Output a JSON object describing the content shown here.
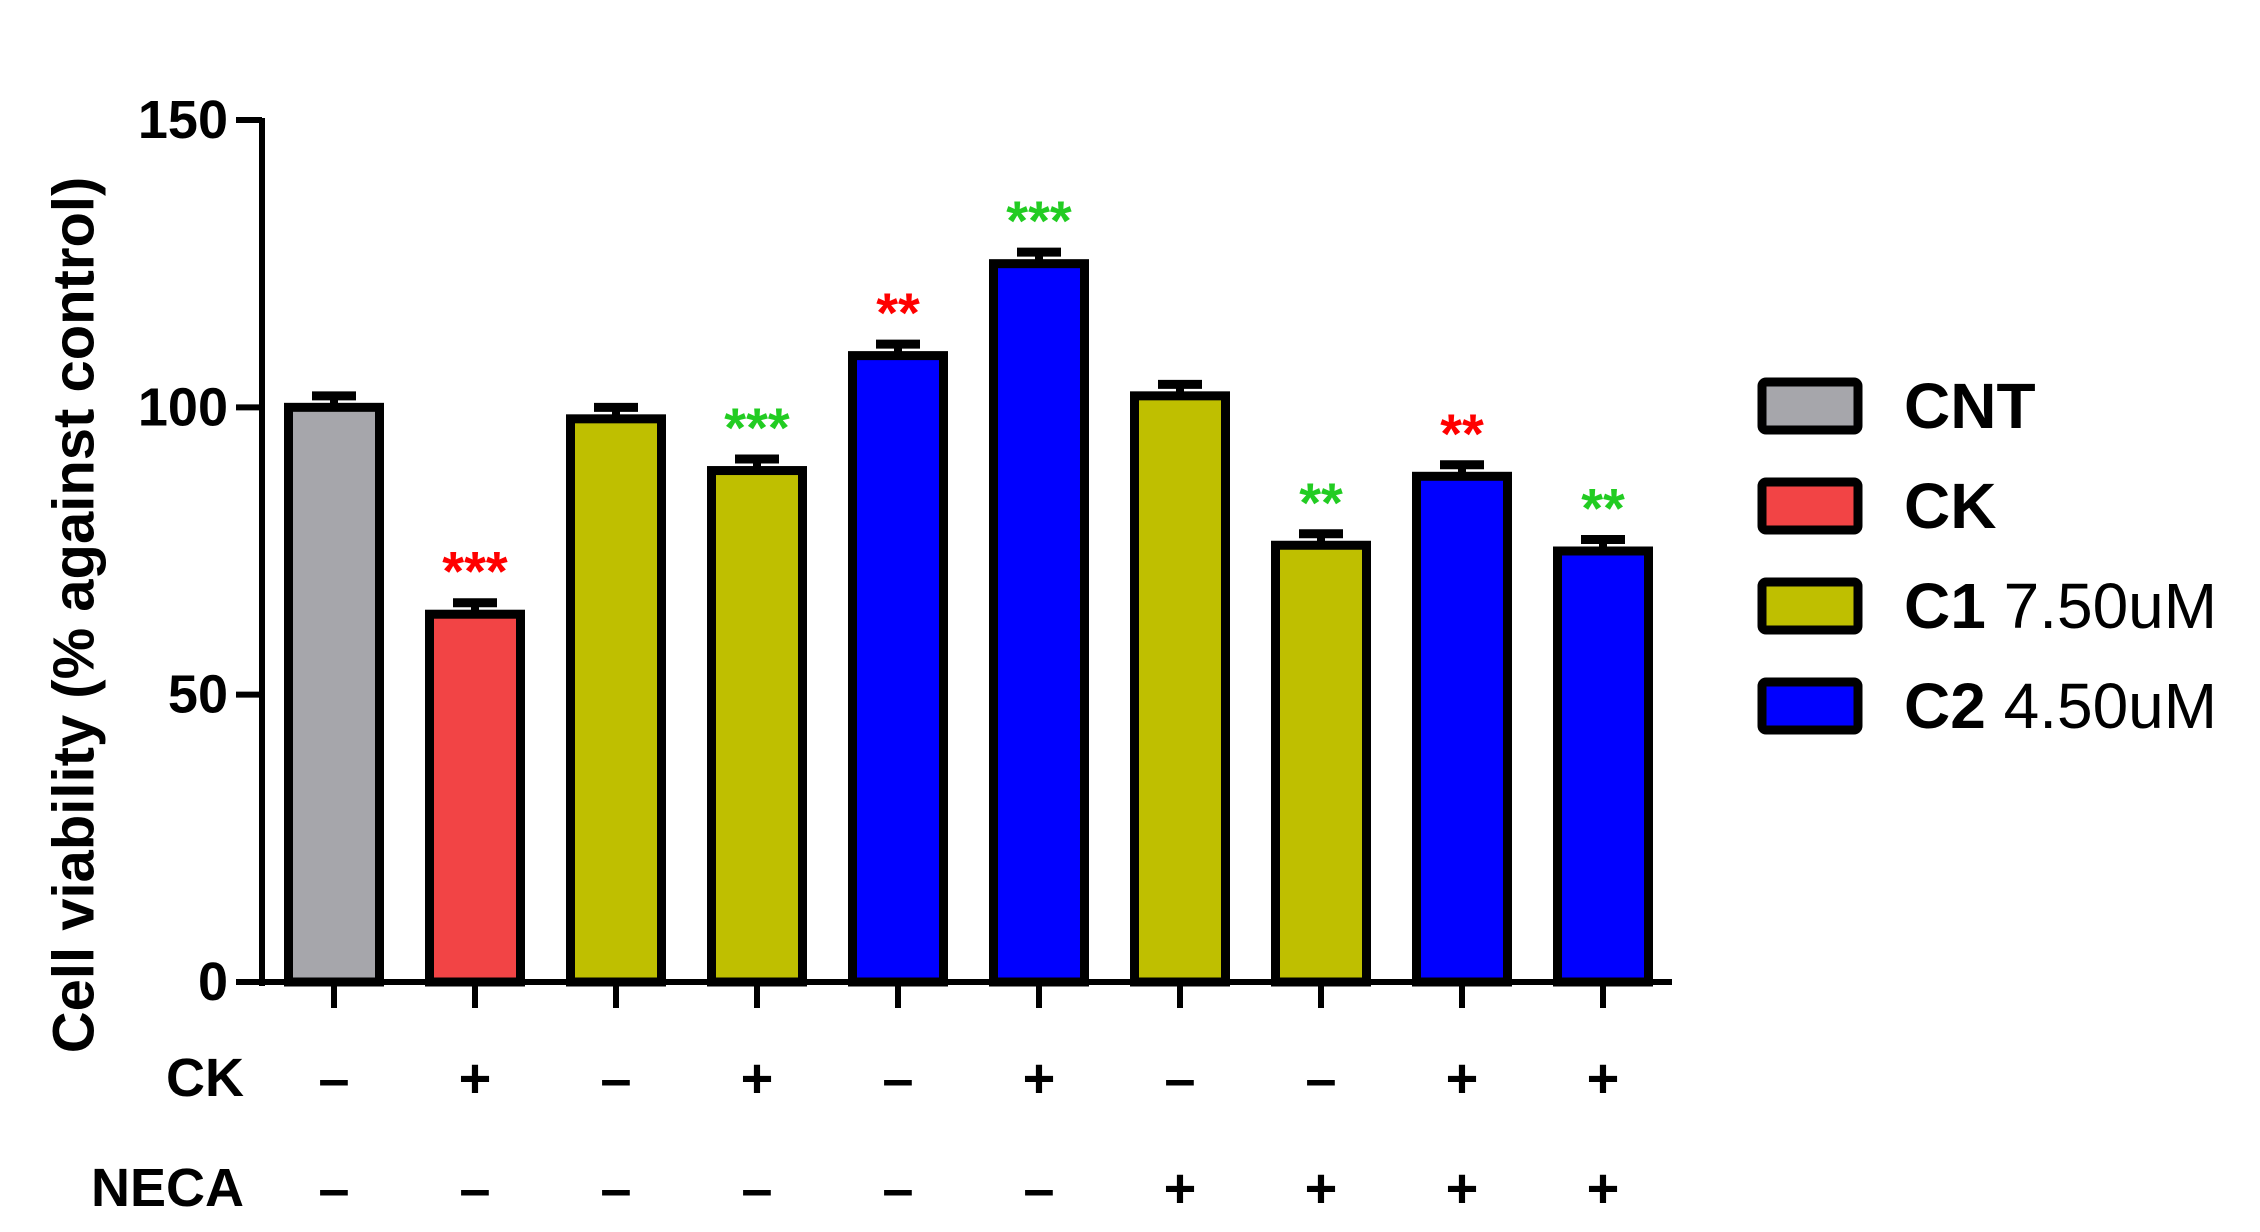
{
  "chart_data": {
    "type": "bar",
    "ylabel": "Cell viability (% against control)",
    "ylim": [
      0,
      150
    ],
    "yticks": [
      0,
      50,
      100,
      150
    ],
    "grid": false,
    "legend_position": "right",
    "bars": [
      {
        "group": "CNT",
        "value": 100,
        "error": 2,
        "sig": "",
        "sig_color": "red"
      },
      {
        "group": "CK",
        "value": 64,
        "error": 2,
        "sig": "***",
        "sig_color": "red"
      },
      {
        "group": "C1",
        "value": 98,
        "error": 2,
        "sig": "",
        "sig_color": "red"
      },
      {
        "group": "C1",
        "value": 89,
        "error": 2,
        "sig": "***",
        "sig_color": "green"
      },
      {
        "group": "C2",
        "value": 109,
        "error": 2,
        "sig": "**",
        "sig_color": "red"
      },
      {
        "group": "C2",
        "value": 125,
        "error": 2,
        "sig": "***",
        "sig_color": "green"
      },
      {
        "group": "C1",
        "value": 102,
        "error": 2,
        "sig": "",
        "sig_color": "red"
      },
      {
        "group": "C1",
        "value": 76,
        "error": 2,
        "sig": "**",
        "sig_color": "green"
      },
      {
        "group": "C2",
        "value": 88,
        "error": 2,
        "sig": "**",
        "sig_color": "red"
      },
      {
        "group": "C2",
        "value": 75,
        "error": 2,
        "sig": "**",
        "sig_color": "green"
      }
    ],
    "treatment_rows": [
      {
        "label": "CK",
        "values": [
          "–",
          "+",
          "–",
          "+",
          "–",
          "+",
          "–",
          "–",
          "+",
          "+"
        ]
      },
      {
        "label": "NECA",
        "values": [
          "–",
          "–",
          "–",
          "–",
          "–",
          "–",
          "+",
          "+",
          "+",
          "+"
        ]
      }
    ],
    "legend": [
      {
        "key": "CNT",
        "bold": "CNT",
        "rest": "",
        "color": "#a6a6ab"
      },
      {
        "key": "CK",
        "bold": "CK",
        "rest": "",
        "color": "#f24445"
      },
      {
        "key": "C1",
        "bold": "C1",
        "rest": " 7.50uM",
        "color": "#bfbf00"
      },
      {
        "key": "C2",
        "bold": "C2",
        "rest": " 4.50uM",
        "color": "#0000ff"
      }
    ],
    "colors": {
      "CNT": "#a6a6ab",
      "CK": "#f24445",
      "C1": "#bfbf00",
      "C2": "#0000ff",
      "sig_red": "#ff0000",
      "sig_green": "#22cc22",
      "axis": "#000000"
    }
  }
}
